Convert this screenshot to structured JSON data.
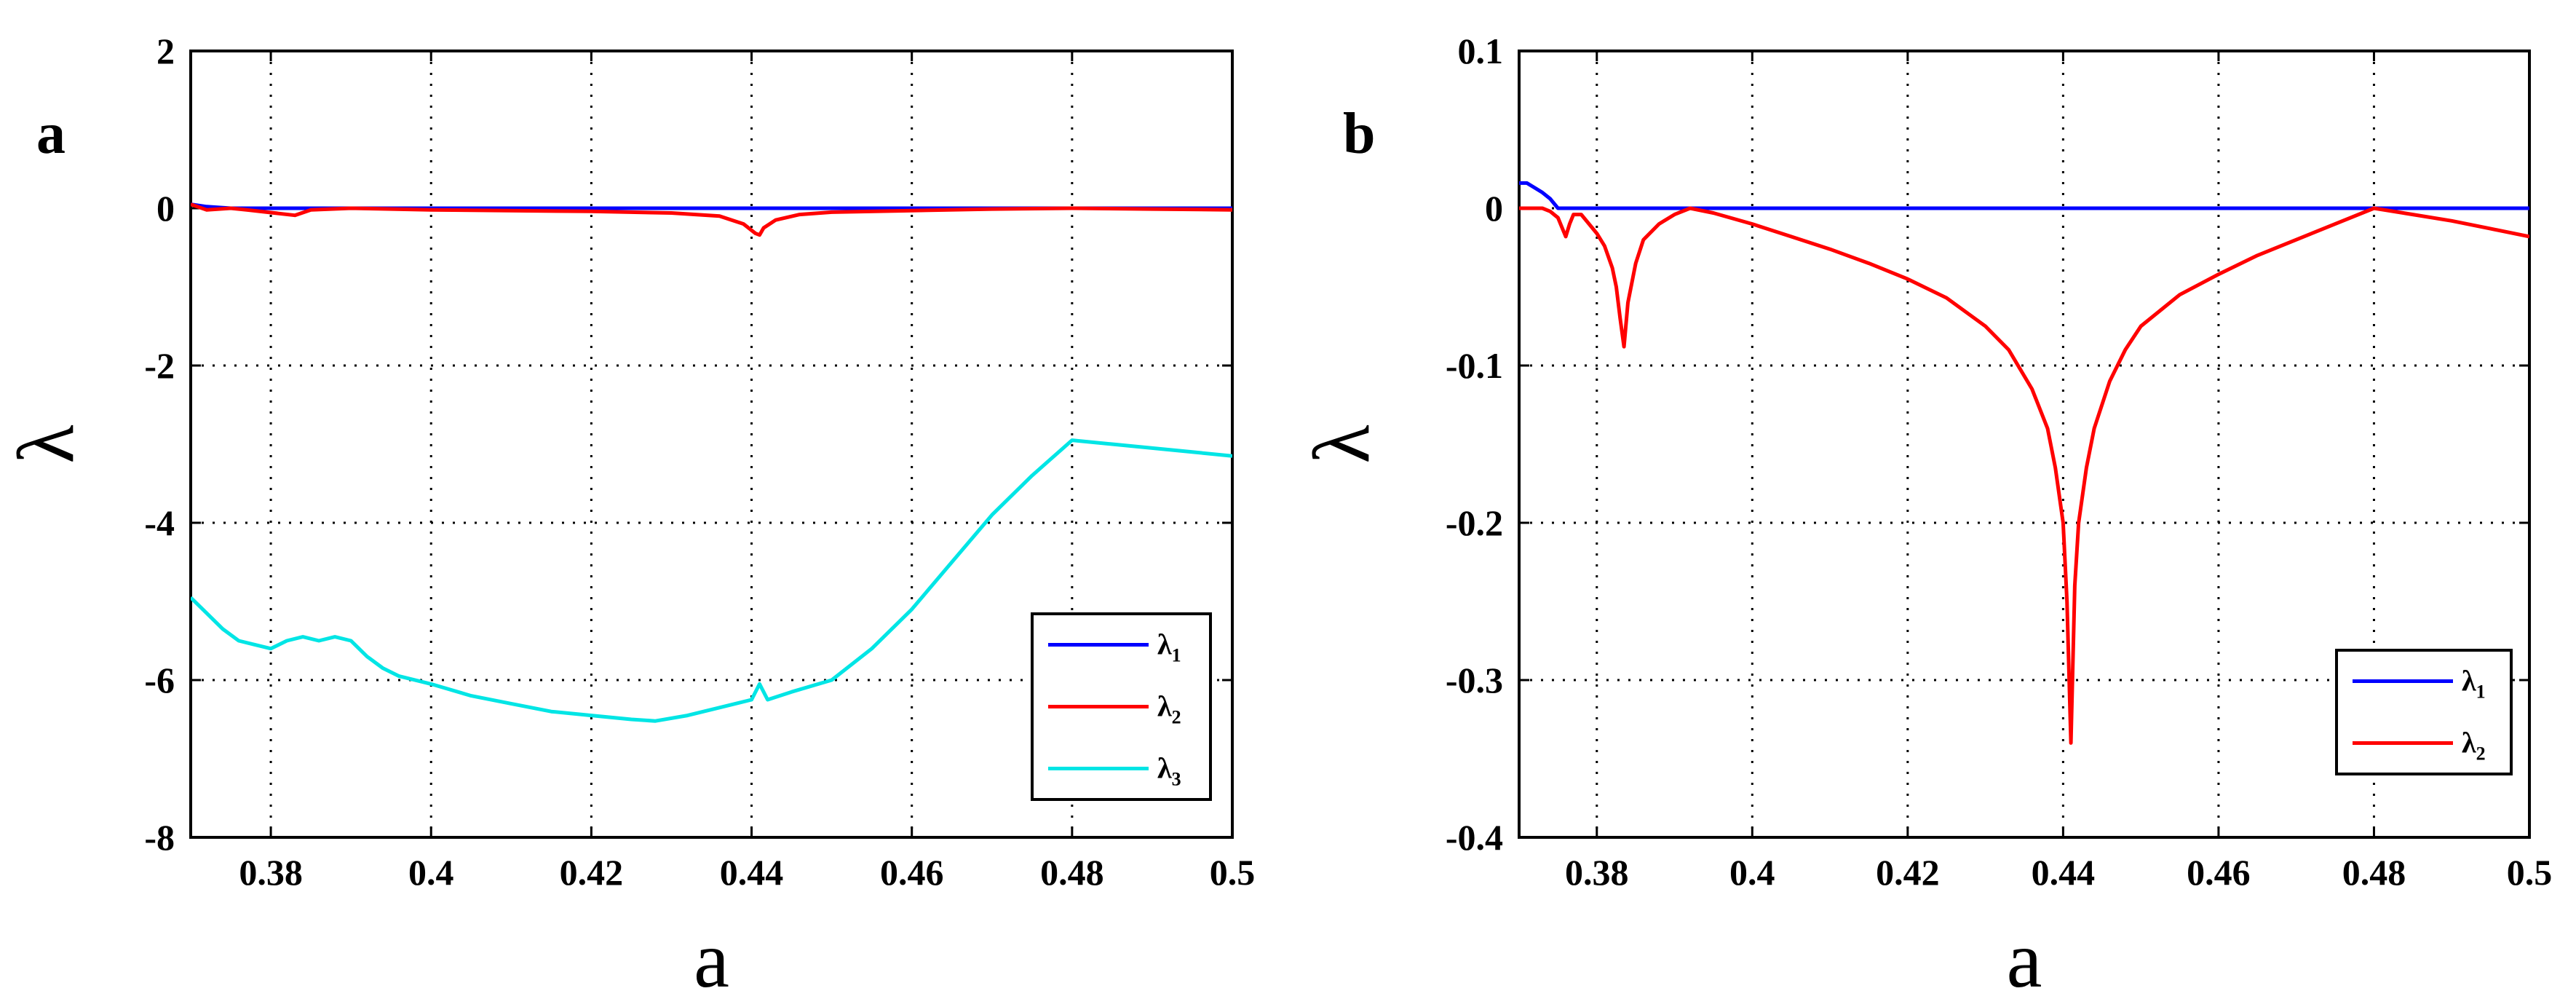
{
  "chart_data": [
    {
      "panel": "a",
      "type": "line",
      "xlabel": "a",
      "ylabel": "λ",
      "xlim": [
        0.37,
        0.5
      ],
      "ylim": [
        -8,
        2
      ],
      "xticks": [
        0.38,
        0.4,
        0.42,
        0.44,
        0.46,
        0.48,
        0.5
      ],
      "xtick_labels": [
        "0.38",
        "0.4",
        "0.42",
        "0.44",
        "0.46",
        "0.48",
        "0.5"
      ],
      "yticks": [
        -8,
        -6,
        -4,
        -2,
        0,
        2
      ],
      "ytick_labels": [
        "-8",
        "-6",
        "-4",
        "-2",
        "0",
        "2"
      ],
      "grid": true,
      "legend_position": "bottom-right",
      "series": [
        {
          "name": "λ1",
          "sym": "λ",
          "sub": "1",
          "color": "#0000ff",
          "x": [
            0.37,
            0.372,
            0.375,
            0.38,
            0.4,
            0.42,
            0.44,
            0.46,
            0.48,
            0.5
          ],
          "y": [
            0.05,
            0.02,
            0.0,
            0.0,
            0.0,
            0.0,
            0.0,
            0.0,
            0.0,
            0.0
          ]
        },
        {
          "name": "λ2",
          "sym": "λ",
          "sub": "2",
          "color": "#ff0000",
          "x": [
            0.37,
            0.372,
            0.375,
            0.377,
            0.383,
            0.385,
            0.39,
            0.4,
            0.42,
            0.43,
            0.436,
            0.439,
            0.4405,
            0.441,
            0.4415,
            0.443,
            0.446,
            0.45,
            0.46,
            0.47,
            0.48,
            0.49,
            0.5
          ],
          "y": [
            0.05,
            -0.02,
            0.0,
            -0.02,
            -0.09,
            -0.02,
            0.0,
            -0.02,
            -0.04,
            -0.06,
            -0.1,
            -0.2,
            -0.32,
            -0.34,
            -0.25,
            -0.15,
            -0.08,
            -0.05,
            -0.03,
            -0.01,
            0.0,
            -0.01,
            -0.02
          ]
        },
        {
          "name": "λ3",
          "sym": "λ",
          "sub": "3",
          "color": "#00e5e5",
          "x": [
            0.37,
            0.372,
            0.374,
            0.376,
            0.378,
            0.38,
            0.382,
            0.384,
            0.386,
            0.388,
            0.39,
            0.392,
            0.394,
            0.396,
            0.4,
            0.405,
            0.41,
            0.415,
            0.42,
            0.425,
            0.428,
            0.432,
            0.436,
            0.44,
            0.441,
            0.442,
            0.445,
            0.45,
            0.455,
            0.46,
            0.465,
            0.47,
            0.475,
            0.48,
            0.485,
            0.49,
            0.495,
            0.5
          ],
          "y": [
            -4.95,
            -5.15,
            -5.35,
            -5.5,
            -5.55,
            -5.6,
            -5.5,
            -5.45,
            -5.5,
            -5.45,
            -5.5,
            -5.7,
            -5.85,
            -5.95,
            -6.05,
            -6.2,
            -6.3,
            -6.4,
            -6.45,
            -6.5,
            -6.52,
            -6.45,
            -6.35,
            -6.25,
            -6.05,
            -6.25,
            -6.15,
            -6.0,
            -5.6,
            -5.1,
            -4.5,
            -3.9,
            -3.4,
            -2.95,
            -3.0,
            -3.05,
            -3.1,
            -3.15
          ]
        }
      ]
    },
    {
      "panel": "b",
      "type": "line",
      "xlabel": "a",
      "ylabel": "λ",
      "xlim": [
        0.37,
        0.5
      ],
      "ylim": [
        -0.4,
        0.1
      ],
      "xticks": [
        0.38,
        0.4,
        0.42,
        0.44,
        0.46,
        0.48,
        0.5
      ],
      "xtick_labels": [
        "0.38",
        "0.4",
        "0.42",
        "0.44",
        "0.46",
        "0.48",
        "0.5"
      ],
      "yticks": [
        -0.4,
        -0.3,
        -0.2,
        -0.1,
        0,
        0.1
      ],
      "ytick_labels": [
        "-0.4",
        "-0.3",
        "-0.2",
        "-0.1",
        "0",
        "0.1"
      ],
      "grid": true,
      "legend_position": "bottom-right",
      "series": [
        {
          "name": "λ1",
          "sym": "λ",
          "sub": "1",
          "color": "#0000ff",
          "x": [
            0.37,
            0.371,
            0.372,
            0.373,
            0.374,
            0.375,
            0.38,
            0.4,
            0.42,
            0.44,
            0.46,
            0.48,
            0.5
          ],
          "y": [
            0.016,
            0.016,
            0.013,
            0.01,
            0.006,
            0.0,
            0.0,
            0.0,
            0.0,
            0.0,
            0.0,
            0.0,
            0.0
          ]
        },
        {
          "name": "λ2",
          "sym": "λ",
          "sub": "2",
          "color": "#ff0000",
          "x": [
            0.37,
            0.371,
            0.372,
            0.373,
            0.374,
            0.375,
            0.3755,
            0.376,
            0.3765,
            0.377,
            0.378,
            0.379,
            0.38,
            0.381,
            0.382,
            0.3825,
            0.383,
            0.3835,
            0.384,
            0.385,
            0.386,
            0.388,
            0.39,
            0.392,
            0.395,
            0.4,
            0.405,
            0.41,
            0.415,
            0.42,
            0.425,
            0.43,
            0.433,
            0.436,
            0.438,
            0.439,
            0.44,
            0.4405,
            0.441,
            0.4415,
            0.442,
            0.443,
            0.444,
            0.446,
            0.448,
            0.45,
            0.455,
            0.46,
            0.465,
            0.47,
            0.475,
            0.48,
            0.485,
            0.49,
            0.495,
            0.5
          ],
          "y": [
            0.0,
            0.0,
            0.0,
            0.0,
            -0.002,
            -0.006,
            -0.012,
            -0.018,
            -0.01,
            -0.004,
            -0.004,
            -0.01,
            -0.016,
            -0.024,
            -0.038,
            -0.05,
            -0.07,
            -0.088,
            -0.06,
            -0.035,
            -0.02,
            -0.01,
            -0.004,
            0.0,
            -0.003,
            -0.01,
            -0.018,
            -0.026,
            -0.035,
            -0.045,
            -0.057,
            -0.075,
            -0.09,
            -0.115,
            -0.14,
            -0.165,
            -0.2,
            -0.25,
            -0.34,
            -0.24,
            -0.2,
            -0.165,
            -0.14,
            -0.11,
            -0.09,
            -0.075,
            -0.055,
            -0.042,
            -0.03,
            -0.02,
            -0.01,
            0.0,
            -0.004,
            -0.008,
            -0.013,
            -0.018
          ]
        }
      ]
    }
  ]
}
